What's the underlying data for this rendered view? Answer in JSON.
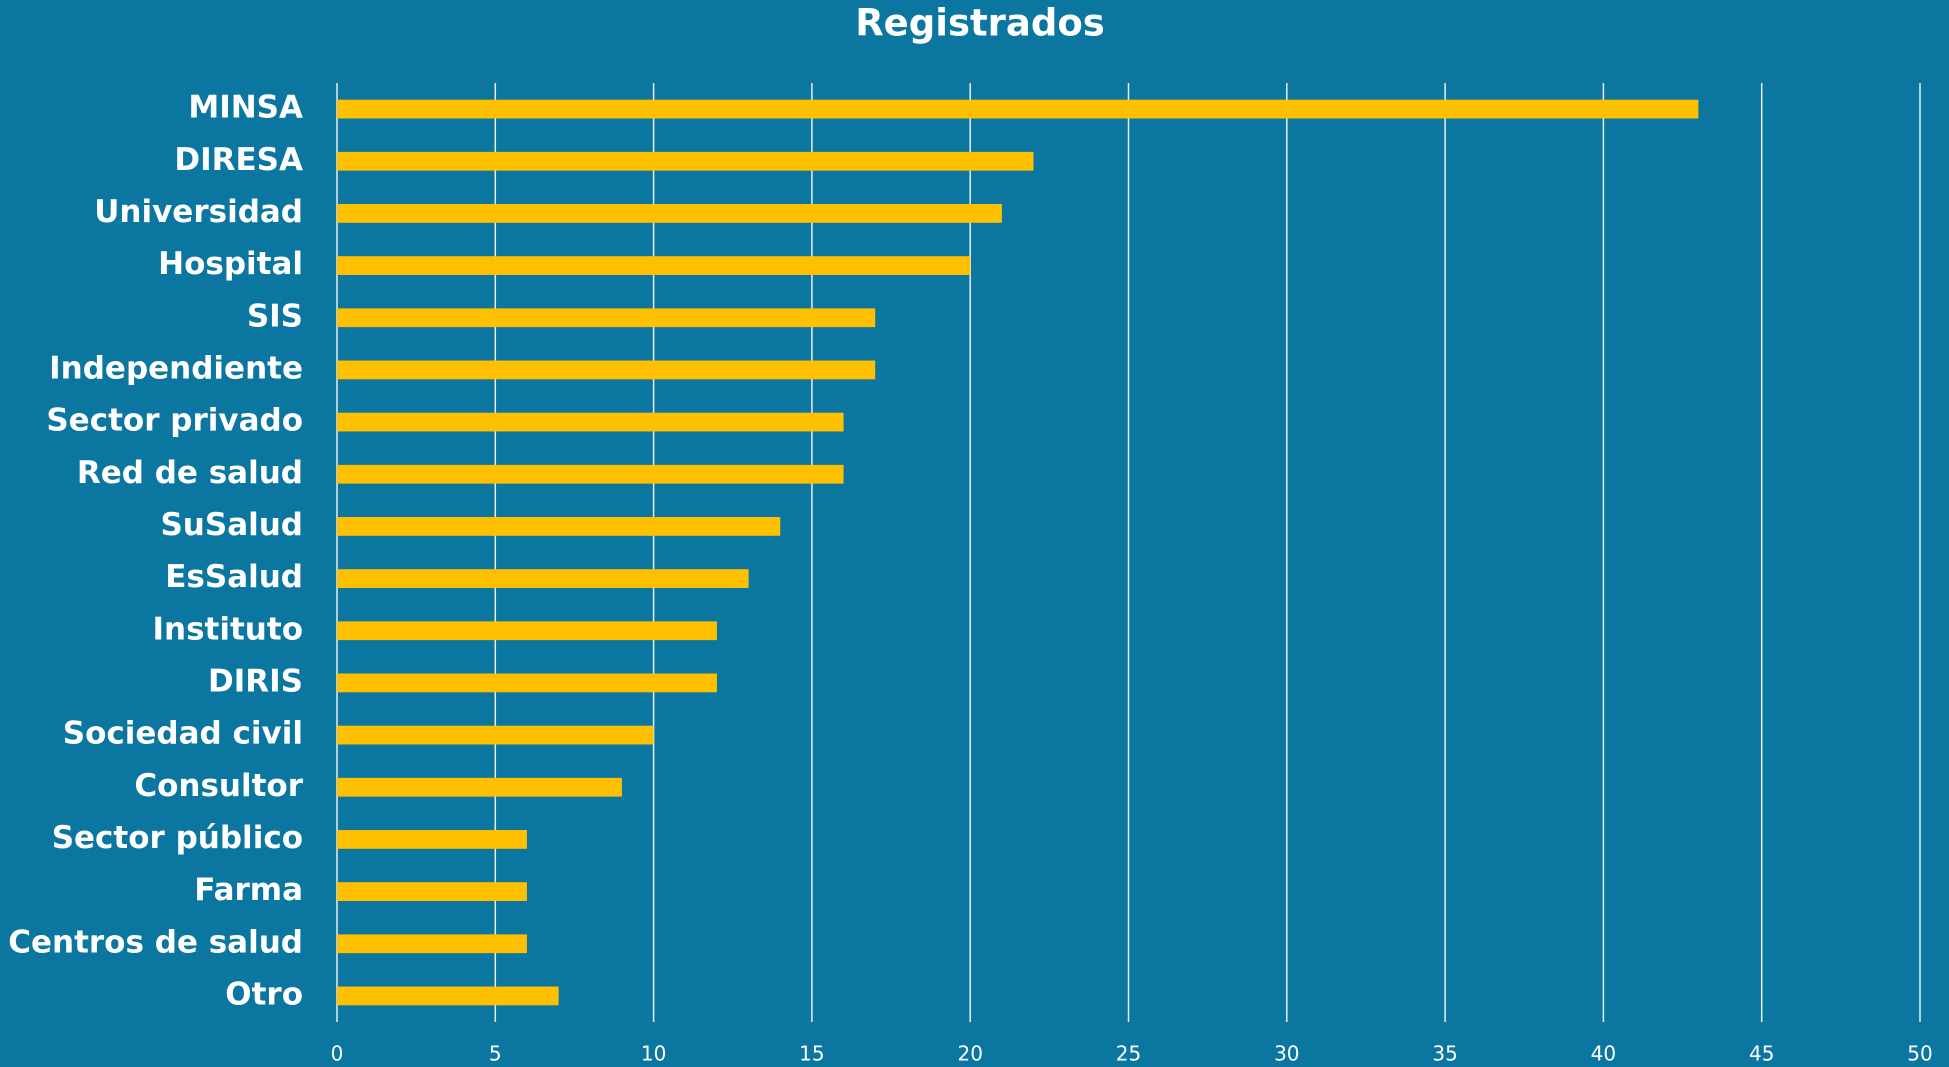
{
  "chart_data": {
    "type": "bar",
    "orientation": "horizontal",
    "title": "Registrados",
    "categories": [
      "MINSA",
      "DIRESA",
      "Universidad",
      "Hospital",
      "SIS",
      "Independiente",
      "Sector privado",
      "Red de salud",
      "SuSalud",
      "EsSalud",
      "Instituto",
      "DIRIS",
      "Sociedad civil",
      "Consultor",
      "Sector público",
      "Farma",
      "Centros de salud",
      "Otro"
    ],
    "values": [
      43,
      22,
      21,
      20,
      17,
      17,
      16,
      16,
      14,
      13,
      12,
      12,
      10,
      9,
      6,
      6,
      6,
      7
    ],
    "color": "#ffc000",
    "xlim": [
      0,
      50
    ],
    "xticks": [
      0,
      5,
      10,
      15,
      20,
      25,
      30,
      35,
      40,
      45,
      50
    ],
    "grid": true
  }
}
